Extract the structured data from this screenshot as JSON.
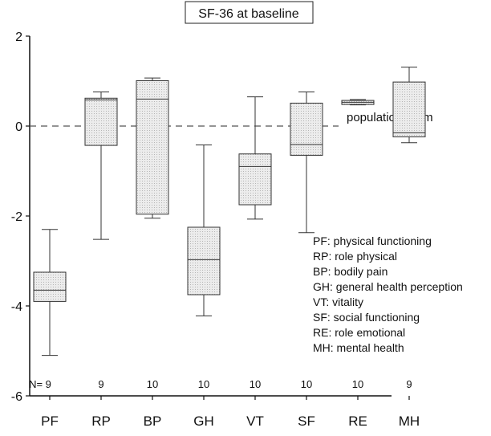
{
  "chart_data": {
    "type": "boxplot",
    "title": "SF-36 at baseline",
    "xlabel": "",
    "ylabel": "",
    "ylim": [
      -6,
      2
    ],
    "yticks": [
      -6,
      -4,
      -2,
      0,
      2
    ],
    "grid": false,
    "n_prefix": "N=",
    "categories": [
      "PF",
      "RP",
      "BP",
      "GH",
      "VT",
      "SF",
      "RE",
      "MH"
    ],
    "n": [
      9,
      9,
      10,
      10,
      10,
      10,
      10,
      9
    ],
    "boxes": [
      {
        "min": -5.1,
        "q1": -3.9,
        "median": -3.65,
        "q3": -3.25,
        "max": -2.3
      },
      {
        "min": -2.52,
        "q1": -0.43,
        "median": 0.58,
        "q3": 0.62,
        "max": 0.76
      },
      {
        "min": -2.05,
        "q1": -1.96,
        "median": 0.6,
        "q3": 1.01,
        "max": 1.07
      },
      {
        "min": -4.22,
        "q1": -3.75,
        "median": -2.97,
        "q3": -2.25,
        "max": -0.42
      },
      {
        "min": -2.07,
        "q1": -1.75,
        "median": -0.9,
        "q3": -0.62,
        "max": 0.65
      },
      {
        "min": -2.37,
        "q1": -0.65,
        "median": -0.41,
        "q3": 0.51,
        "max": 0.76
      },
      {
        "min": 0.47,
        "q1": 0.48,
        "median": 0.53,
        "q3": 0.57,
        "max": 0.59
      },
      {
        "min": -0.37,
        "q1": -0.24,
        "median": -0.15,
        "q3": 0.98,
        "max": 1.31
      }
    ],
    "reference_line": {
      "value": 0,
      "label": "population norm",
      "style": "dashed"
    },
    "legend": {
      "position": "bottom-right",
      "entries": [
        "PF: physical functioning",
        "RP: role physical",
        "BP: bodily pain",
        "GH: general health perception",
        "VT: vitality",
        "SF: social functioning",
        "RE: role emotional",
        "MH: mental health"
      ]
    },
    "colors": {
      "box_fill": "#e6e6e6",
      "stroke": "#333333",
      "reference": "#555555"
    }
  }
}
